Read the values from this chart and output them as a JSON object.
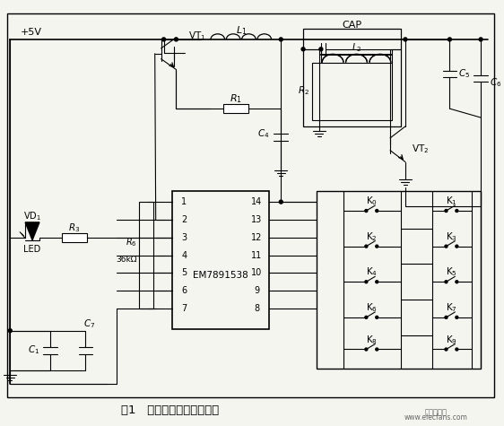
{
  "title": "图1   无线遥控发射器原理图",
  "watermark1": "电子发烧友",
  "watermark2": "www.elecfans.com",
  "bg_color": "#f5f5f0",
  "line_color": "#000000",
  "fig_width": 5.62,
  "fig_height": 4.75,
  "dpi": 100
}
